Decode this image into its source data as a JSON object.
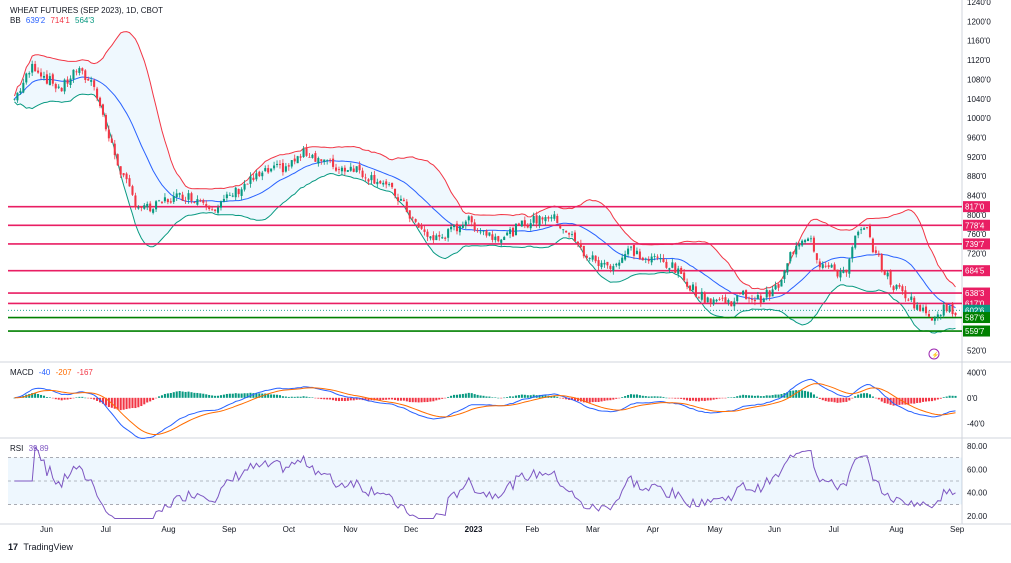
{
  "header": {
    "title": "WHEAT FUTURES (SEP 2023), 1D, CBOT",
    "bb_label": "BB",
    "bb_values": [
      "639'2",
      "714'1",
      "564'3"
    ],
    "macd_label": "MACD",
    "macd_values": [
      "-40",
      "-207",
      "-167"
    ],
    "rsi_label": "RSI",
    "rsi_value": "39.89"
  },
  "footer": {
    "brand": "TradingView",
    "logo": "17"
  },
  "colors": {
    "up": "#089981",
    "down": "#f23645",
    "bb_upper": "#f23645",
    "bb_lower": "#22ab94",
    "bb_basis": "#2962ff",
    "level_red": "#e91e63",
    "level_green": "#008000",
    "rsi_line": "#7e57c2",
    "macd_line": "#2962ff",
    "signal_line": "#ff6d00"
  },
  "chart_data": [
    {
      "type": "candlestick",
      "title": "WHEAT FUTURES (SEP 2023), 1D, CBOT",
      "x_ticks": [
        "Jun",
        "Jul",
        "Aug",
        "Sep",
        "Oct",
        "Nov",
        "Dec",
        "2023",
        "Feb",
        "Mar",
        "Apr",
        "May",
        "Jun",
        "Jul",
        "Aug",
        "Sep"
      ],
      "y_ticks": [
        "1240'0",
        "1200'0",
        "1160'0",
        "1120'0",
        "1080'0",
        "1040'0",
        "1000'0",
        "960'0",
        "920'0",
        "880'0",
        "840'0",
        "800'0",
        "760'0",
        "720'0",
        "520'0"
      ],
      "ylim": [
        500,
        1240
      ],
      "horizontal_levels": [
        {
          "label": "817'0",
          "value": 817,
          "color": "red"
        },
        {
          "label": "778'4",
          "value": 778.5,
          "color": "red"
        },
        {
          "label": "739'7",
          "value": 739.9,
          "color": "red"
        },
        {
          "label": "684'5",
          "value": 684.6,
          "color": "red"
        },
        {
          "label": "638'3",
          "value": 638.4,
          "color": "red"
        },
        {
          "label": "617'0",
          "value": 617,
          "color": "red"
        },
        {
          "label": "602'6",
          "value": 602.75,
          "color": "current"
        },
        {
          "label": "587'6",
          "value": 587.75,
          "color": "green"
        },
        {
          "label": "559'7",
          "value": 559.9,
          "color": "green"
        }
      ],
      "close_path": [
        [
          0.0,
          1040
        ],
        [
          0.02,
          1110
        ],
        [
          0.035,
          1080
        ],
        [
          0.05,
          1060
        ],
        [
          0.065,
          1100
        ],
        [
          0.085,
          1070
        ],
        [
          0.1,
          960
        ],
        [
          0.115,
          880
        ],
        [
          0.13,
          820
        ],
        [
          0.145,
          810
        ],
        [
          0.16,
          830
        ],
        [
          0.18,
          840
        ],
        [
          0.2,
          830
        ],
        [
          0.215,
          815
        ],
        [
          0.23,
          840
        ],
        [
          0.25,
          870
        ],
        [
          0.27,
          890
        ],
        [
          0.29,
          900
        ],
        [
          0.31,
          930
        ],
        [
          0.325,
          915
        ],
        [
          0.345,
          895
        ],
        [
          0.36,
          900
        ],
        [
          0.375,
          880
        ],
        [
          0.39,
          870
        ],
        [
          0.41,
          830
        ],
        [
          0.43,
          770
        ],
        [
          0.445,
          750
        ],
        [
          0.46,
          760
        ],
        [
          0.48,
          790
        ],
        [
          0.495,
          770
        ],
        [
          0.51,
          755
        ],
        [
          0.525,
          760
        ],
        [
          0.54,
          780
        ],
        [
          0.555,
          790
        ],
        [
          0.565,
          800
        ],
        [
          0.575,
          790
        ],
        [
          0.59,
          760
        ],
        [
          0.605,
          720
        ],
        [
          0.625,
          695
        ],
        [
          0.64,
          700
        ],
        [
          0.655,
          730
        ],
        [
          0.67,
          705
        ],
        [
          0.685,
          710
        ],
        [
          0.7,
          690
        ],
        [
          0.715,
          660
        ],
        [
          0.73,
          630
        ],
        [
          0.745,
          625
        ],
        [
          0.76,
          620
        ],
        [
          0.775,
          635
        ],
        [
          0.79,
          625
        ],
        [
          0.805,
          640
        ],
        [
          0.815,
          660
        ],
        [
          0.825,
          720
        ],
        [
          0.835,
          750
        ],
        [
          0.845,
          760
        ],
        [
          0.855,
          700
        ],
        [
          0.865,
          690
        ],
        [
          0.875,
          680
        ],
        [
          0.885,
          690
        ],
        [
          0.895,
          760
        ],
        [
          0.905,
          770
        ],
        [
          0.915,
          720
        ],
        [
          0.925,
          680
        ],
        [
          0.935,
          650
        ],
        [
          0.945,
          640
        ],
        [
          0.955,
          620
        ],
        [
          0.965,
          600
        ],
        [
          0.975,
          590
        ],
        [
          0.985,
          605
        ],
        [
          1.0,
          602
        ]
      ]
    },
    {
      "type": "line",
      "name": "MACD",
      "y_ticks": [
        "400'0",
        "0'0",
        "-40'0"
      ],
      "ylim": [
        -60,
        50
      ]
    },
    {
      "type": "line",
      "name": "RSI",
      "y_ticks": [
        "80.00",
        "60.00",
        "40.00",
        "20.00"
      ],
      "ylim": [
        15,
        85
      ],
      "band": [
        30,
        70
      ],
      "last": 39.89
    }
  ]
}
